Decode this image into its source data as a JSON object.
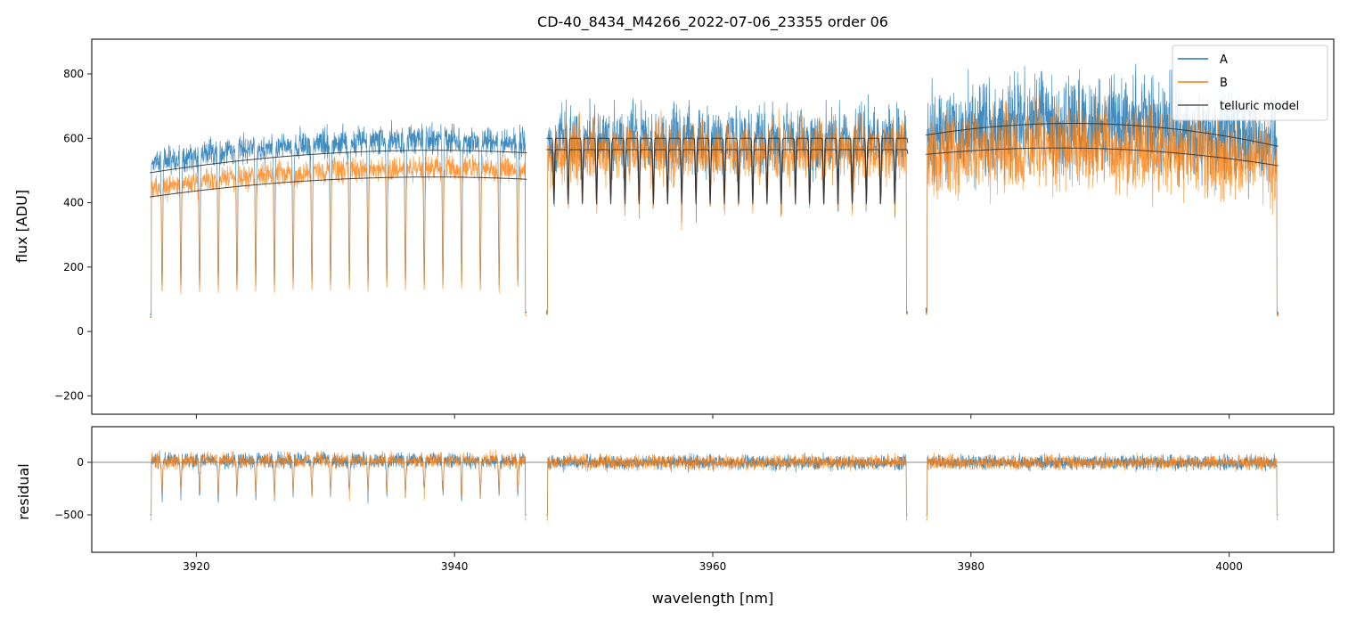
{
  "chart_data": {
    "type": "line",
    "title": "CD-40_8434_M4266_2022-07-06_23355  order 06",
    "xlabel": "wavelength [nm]",
    "ylabel_top": "flux [ADU]",
    "ylabel_bottom": "residual",
    "xlim": [
      3911.9,
      4008.1
    ],
    "ylim_top": [
      -257,
      908
    ],
    "ylim_bottom": [
      -856,
      339
    ],
    "xticks": [
      3920,
      3940,
      3960,
      3980,
      4000
    ],
    "xtick_labels": [
      "3920",
      "3940",
      "3960",
      "3980",
      "4000"
    ],
    "yticks_top": [
      -200,
      0,
      200,
      400,
      600,
      800
    ],
    "ytick_labels_top": [
      "−200",
      "0",
      "200",
      "400",
      "600",
      "800"
    ],
    "yticks_bottom": [
      -500,
      0
    ],
    "ytick_labels_bottom": [
      "−500",
      "0"
    ],
    "legend": {
      "placement": "top-right",
      "entries": [
        "A",
        "B",
        "telluric model"
      ]
    },
    "colors": {
      "A": "#1f77b4",
      "B": "#ff7f0e",
      "model": "#333333"
    },
    "segments": [
      {
        "x": [
          3916.4,
          3945.6
        ],
        "modelA": [
          493,
          555,
          555
        ],
        "modelB": [
          418,
          473,
          473
        ],
        "line_spacing": 1.45,
        "line_depth": 0.75,
        "noise": 0.1
      },
      {
        "x": [
          3947.1,
          3975.1
        ],
        "modelA": [
          600,
          600,
          600
        ],
        "modelB": [
          565,
          565,
          565
        ],
        "line_spacing": 1.1,
        "line_depth": 0.3,
        "noise": 0.12
      },
      {
        "x": [
          3976.5,
          4003.8
        ],
        "modelA": [
          610,
          645,
          575
        ],
        "modelB": [
          550,
          568,
          515
        ],
        "line_spacing": 0,
        "line_depth": 0,
        "noise": 0.16
      }
    ]
  }
}
